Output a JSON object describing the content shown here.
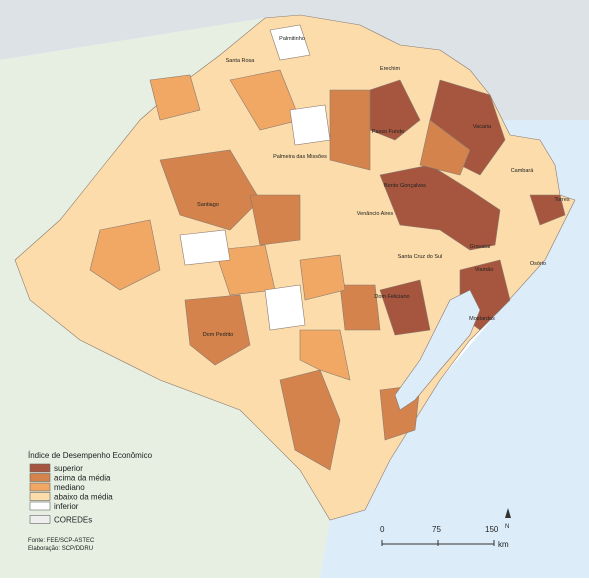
{
  "legend": {
    "title": "Índice de Desempenho Econômico",
    "items": [
      {
        "label": "superior",
        "color": "#a6563f"
      },
      {
        "label": "acima da média",
        "color": "#d4834d"
      },
      {
        "label": "mediano",
        "color": "#f1a865"
      },
      {
        "label": "abaixo da média",
        "color": "#fbdcaa"
      },
      {
        "label": "inferior",
        "color": "#ffffff"
      },
      {
        "label": "COREDEs",
        "color": "#eeeeee"
      }
    ]
  },
  "places": [
    "Palmitinho",
    "Santa Rosa",
    "Erechim",
    "Passo Fundo",
    "Vacaria",
    "Palmeira das Missões",
    "Bento Gonçalves",
    "Cambará",
    "Santiago",
    "Venâncio Aires",
    "Santa Cruz do Sul",
    "Gravataí",
    "Viamão",
    "Osório",
    "Torres",
    "Dom Feliciano",
    "Mostardas",
    "Dom Pedrito"
  ],
  "scale": {
    "ticks": [
      "0",
      "75",
      "150"
    ],
    "unit": "km"
  },
  "north": "N",
  "source": [
    "Fonte: FEE/SCP-ASTEC",
    "Elaboração: SCP/DDRU"
  ]
}
